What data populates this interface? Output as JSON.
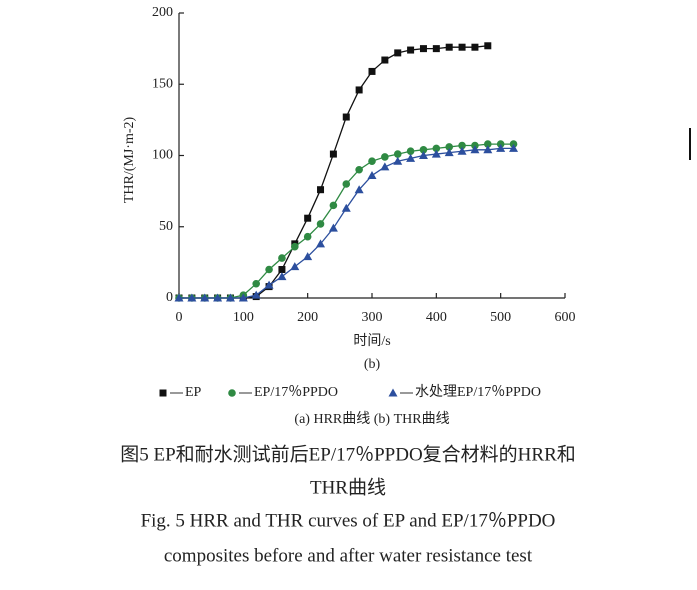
{
  "chart_data": {
    "type": "line",
    "xlabel": "时间/s",
    "panel_label": "(b)",
    "ylabel": "THR/(MJ·m-2)",
    "x": [
      0,
      20,
      40,
      60,
      80,
      100,
      120,
      140,
      160,
      180,
      200,
      220,
      240,
      260,
      280,
      300,
      320,
      340,
      360,
      380,
      400,
      420,
      440,
      460,
      480,
      500,
      520
    ],
    "series": [
      {
        "name": "EP",
        "color": "#111111",
        "marker": "square",
        "values": [
          0,
          0,
          0,
          0,
          0,
          0,
          1,
          8,
          20,
          38,
          56,
          76,
          101,
          127,
          146,
          159,
          167,
          172,
          174,
          175,
          175,
          176,
          176,
          176,
          177,
          null,
          null
        ]
      },
      {
        "name": "EP/17％PPDO",
        "color": "#2f8a43",
        "marker": "circle",
        "values": [
          0,
          0,
          0,
          0,
          0,
          2,
          10,
          20,
          28,
          36,
          43,
          52,
          65,
          80,
          90,
          96,
          99,
          101,
          103,
          104,
          105,
          106,
          107,
          107,
          108,
          108,
          108
        ]
      },
      {
        "name": "水处理EP/17％PPDO",
        "color": "#2c4f9e",
        "marker": "triangle",
        "values": [
          0,
          0,
          0,
          0,
          0,
          0,
          2,
          9,
          15,
          22,
          29,
          38,
          49,
          63,
          76,
          86,
          92,
          96,
          98,
          100,
          101,
          102,
          103,
          104,
          104,
          105,
          105
        ]
      }
    ],
    "xlim": [
      0,
      600
    ],
    "xticks": [
      0,
      100,
      200,
      300,
      400,
      500,
      600
    ],
    "ylim": [
      0,
      200
    ],
    "yticks": [
      0,
      50,
      100,
      150,
      200
    ],
    "subcaption": "(a) HRR曲线 (b) THR曲线"
  },
  "caption": {
    "zh": [
      "图5 EP和耐水测试前后EP/17％PPDO复合材料的HRR和",
      "THR曲线"
    ],
    "en": [
      "Fig. 5 HRR and THR curves of EP and EP/17％PPDO",
      "composites before and after water resistance test"
    ]
  }
}
